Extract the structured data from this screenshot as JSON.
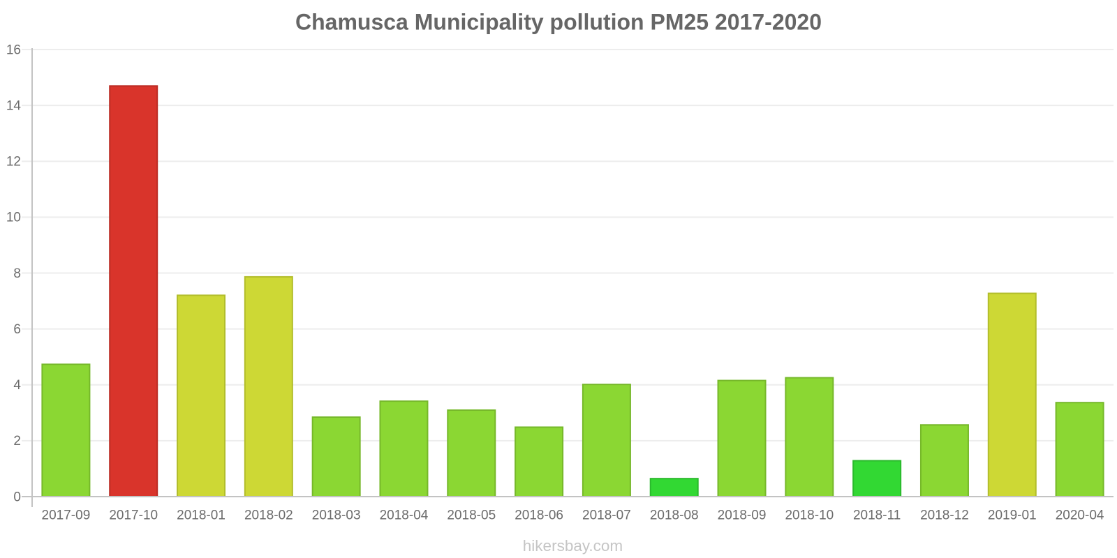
{
  "chart": {
    "title": "Chamusca Municipality pollution PM25 2017-2020",
    "credits": "hikersbay.com"
  },
  "chart_data": {
    "type": "bar",
    "title": "Chamusca Municipality pollution PM25 2017-2020",
    "xlabel": "",
    "ylabel": "",
    "categories": [
      "2017-09",
      "2017-10",
      "2018-01",
      "2018-02",
      "2018-03",
      "2018-04",
      "2018-05",
      "2018-06",
      "2018-07",
      "2018-08",
      "2018-09",
      "2018-10",
      "2018-11",
      "2018-12",
      "2019-01",
      "2020-04"
    ],
    "values": [
      4.76,
      14.72,
      7.23,
      7.89,
      2.87,
      3.44,
      3.12,
      2.51,
      4.04,
      0.67,
      4.18,
      4.28,
      1.31,
      2.59,
      7.3,
      3.39
    ],
    "bar_color_names": [
      "green",
      "red",
      "yellow",
      "yellow",
      "green",
      "green",
      "green",
      "green",
      "green",
      "bright_green",
      "green",
      "green",
      "bright_green",
      "green",
      "yellow",
      "green"
    ],
    "ylim": [
      0,
      16
    ],
    "yticks": [
      0,
      2,
      4,
      6,
      8,
      10,
      12,
      14,
      16
    ],
    "grid": true,
    "legend": "none"
  },
  "colors": {
    "bars": {
      "green": {
        "fill": "#8BD733",
        "border": "#76B82A"
      },
      "bright_green": {
        "fill": "#32D833",
        "border": "#2ABA2C"
      },
      "yellow": {
        "fill": "#CDD835",
        "border": "#B2BD2B"
      },
      "red": {
        "fill": "#D9342B",
        "border": "#BC2C24"
      }
    },
    "axis_line": "#C3C3C3",
    "grid_line": "#EDEDED",
    "tick_label": "#6B6B6B",
    "title_text": "#666666",
    "credits_text": "#C5C5C5",
    "background": "#FFFFFF"
  }
}
